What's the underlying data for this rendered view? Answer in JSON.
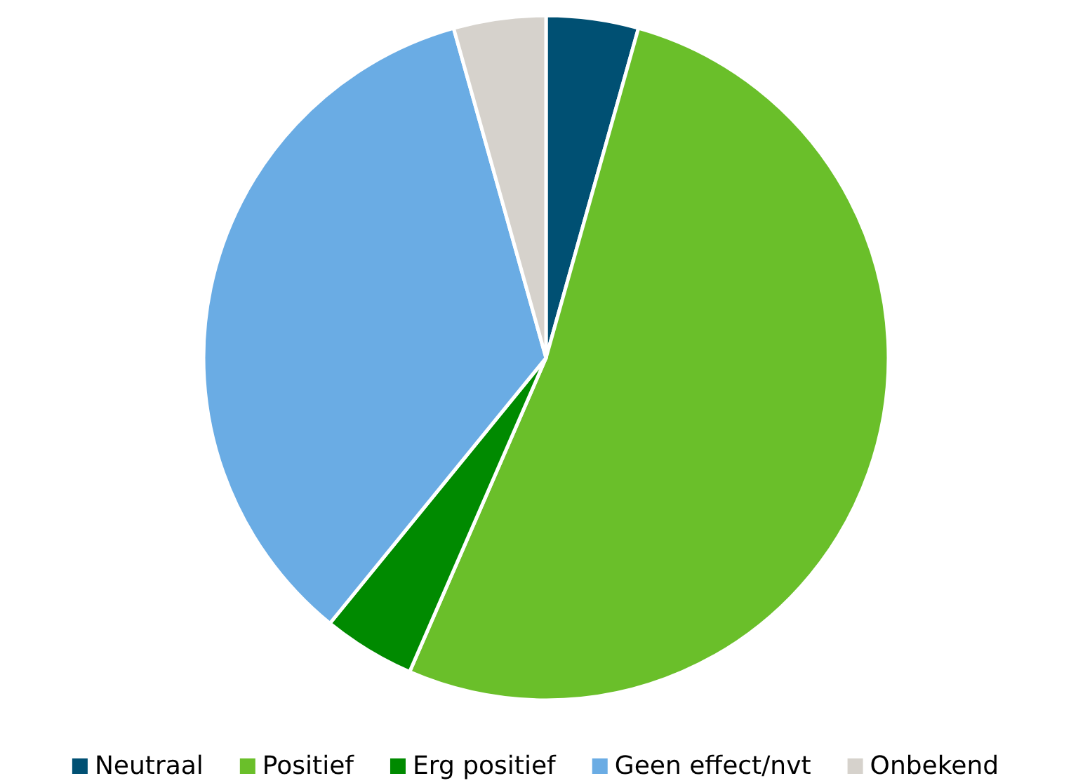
{
  "chart_data": {
    "type": "pie",
    "categories": [
      "Neutraal",
      "Positief",
      "Erg positief",
      "Geen effect/nvt",
      "Onbekend"
    ],
    "values": [
      4.35,
      52.17,
      4.35,
      34.78,
      4.35
    ],
    "colors": [
      "#005073",
      "#6abf2a",
      "#008a00",
      "#6aace4",
      "#d6d2cc"
    ],
    "legend": "bottom"
  }
}
